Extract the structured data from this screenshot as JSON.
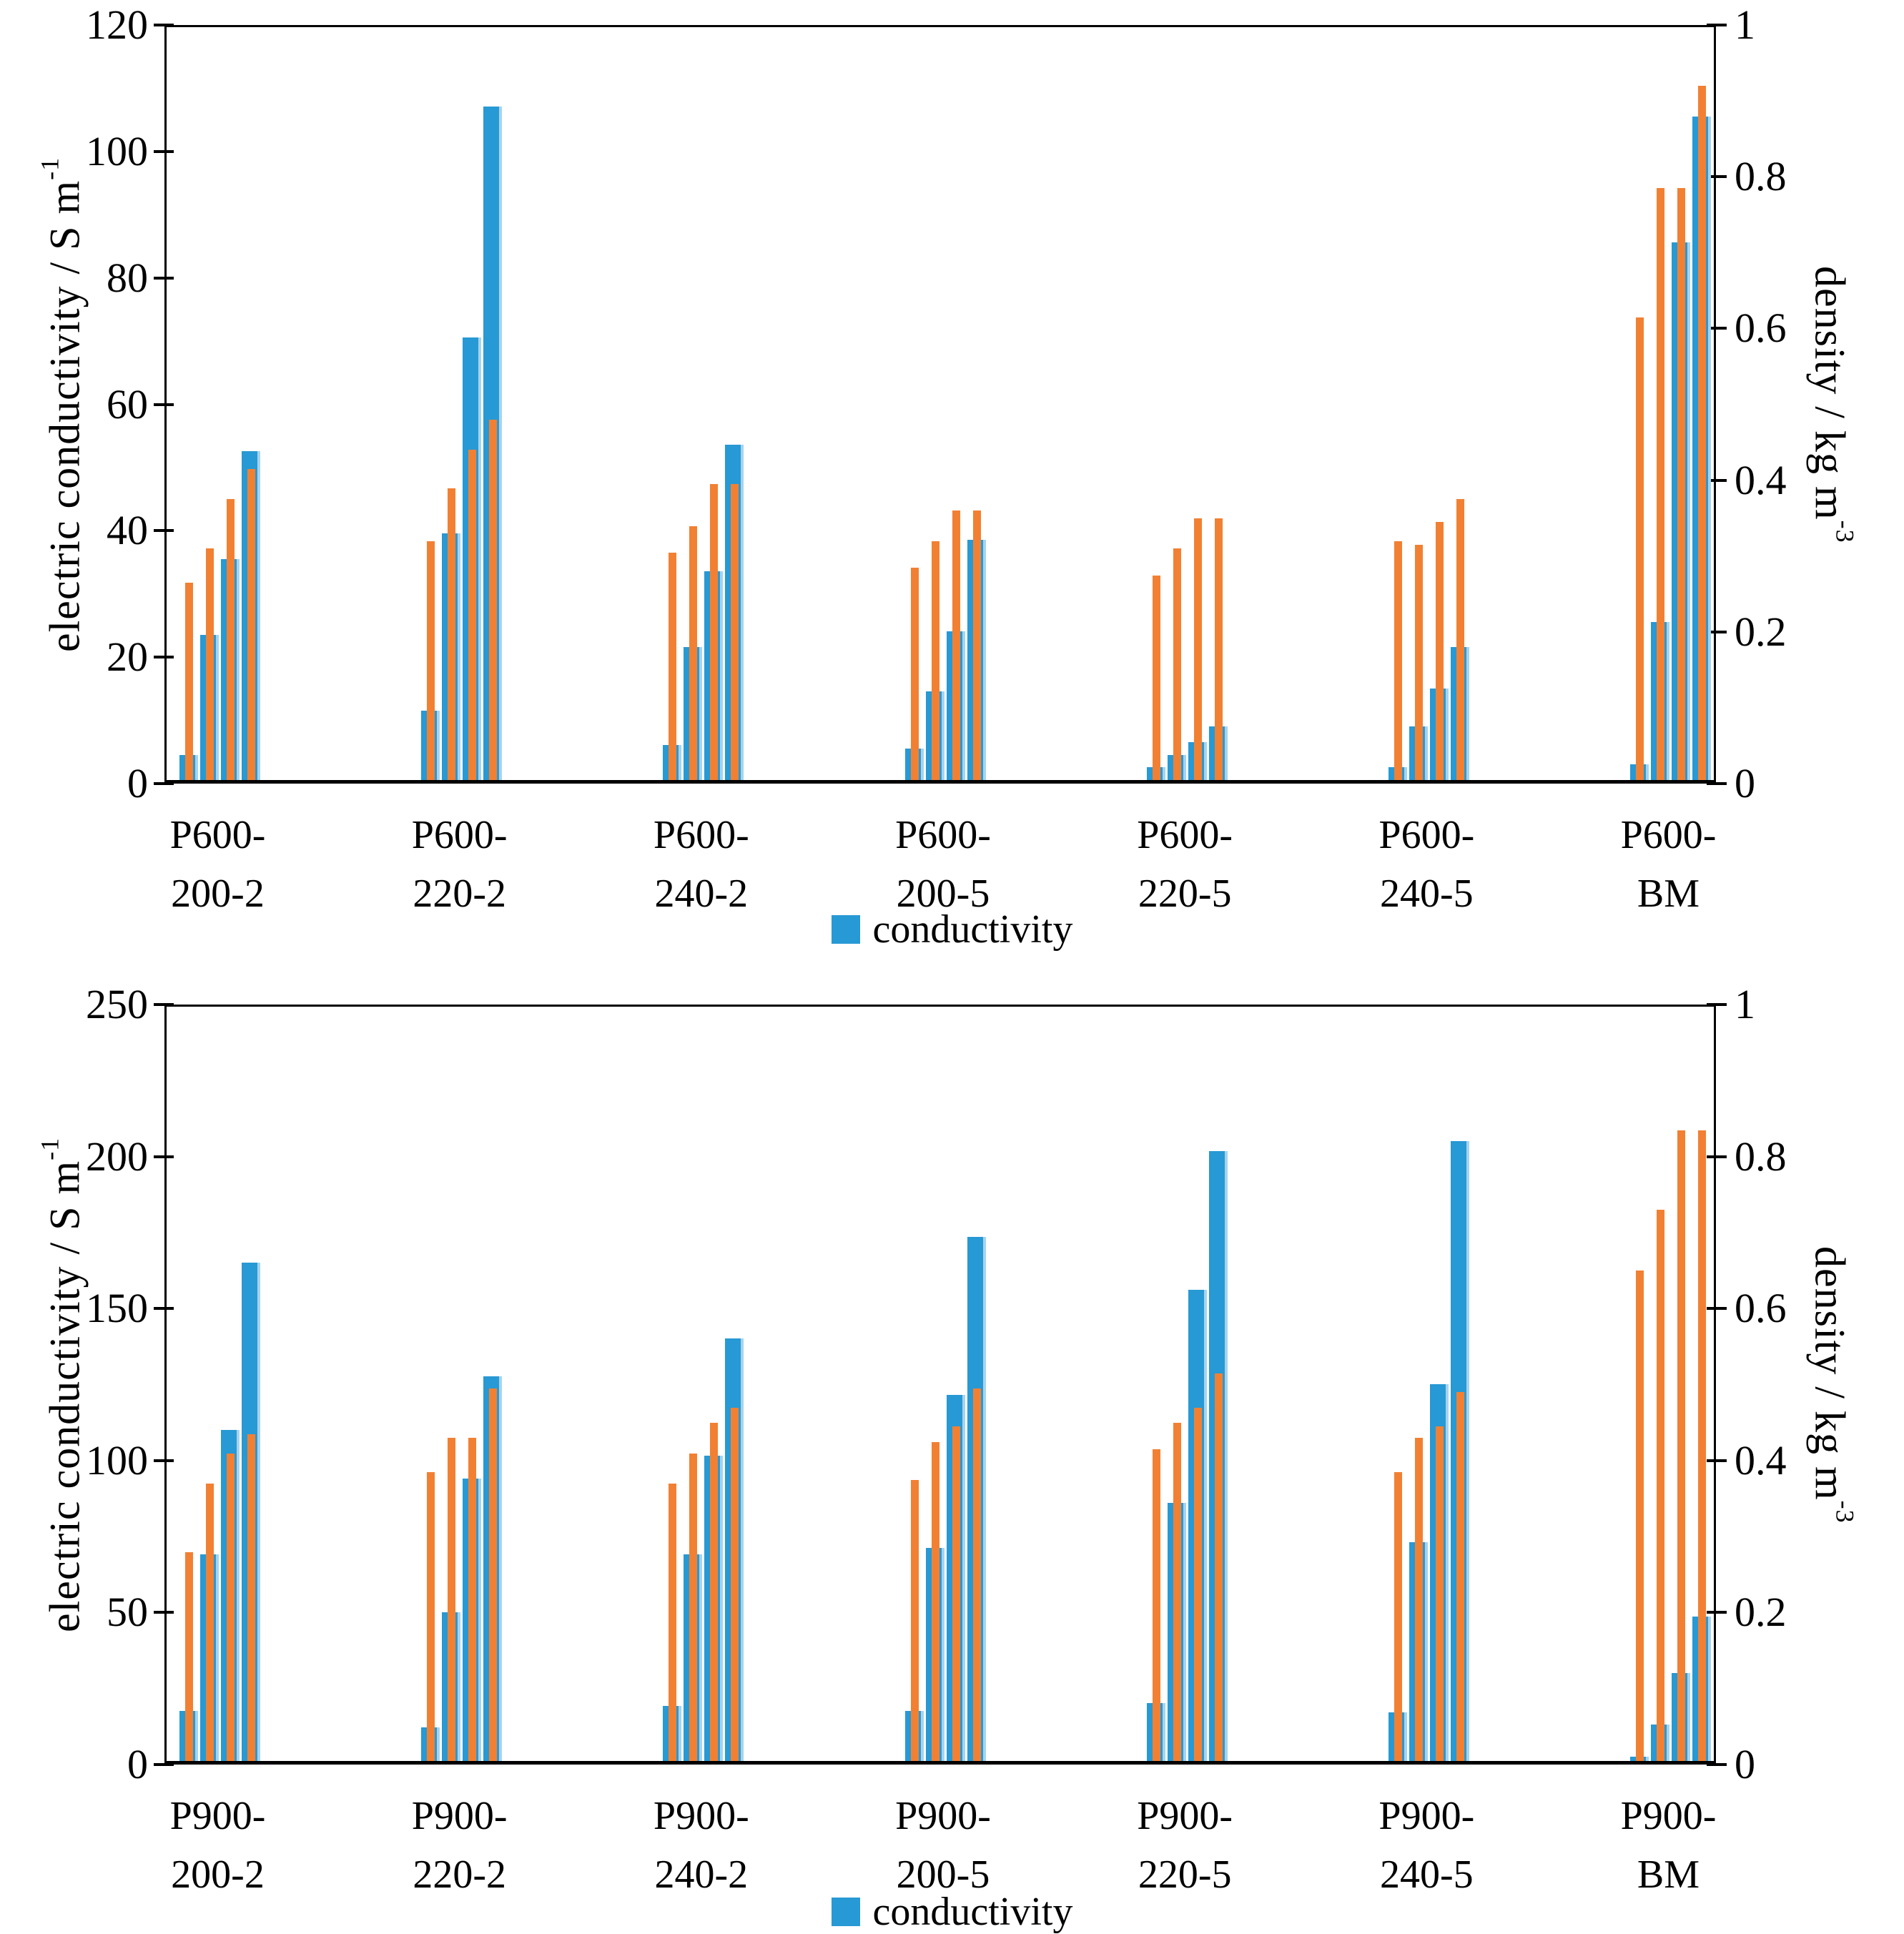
{
  "colors": {
    "conductivity": "#2799D4",
    "conductivity_edge": "#A6D3EE",
    "density": "#F28033",
    "axis": "#000000"
  },
  "chart_data": [
    {
      "type": "bar",
      "title": "",
      "left_axis": {
        "label": "electric conductivity / S m",
        "label_sup": "-1",
        "min": 0,
        "max": 120,
        "ticks": [
          "0",
          "20",
          "40",
          "60",
          "80",
          "100",
          "120"
        ]
      },
      "right_axis": {
        "label": "density / kg m",
        "label_sup": "-3",
        "min": 0,
        "max": 1,
        "ticks": [
          "0",
          "0.2",
          "0.4",
          "0.6",
          "0.8",
          "1"
        ]
      },
      "legend": {
        "label": "conductivity"
      },
      "categories": [
        {
          "line1": "P600-",
          "line2": "200-2"
        },
        {
          "line1": "P600-",
          "line2": "220-2"
        },
        {
          "line1": "P600-",
          "line2": "240-2"
        },
        {
          "line1": "P600-",
          "line2": "200-5"
        },
        {
          "line1": "P600-",
          "line2": "220-5"
        },
        {
          "line1": "P600-",
          "line2": "240-5"
        },
        {
          "line1": "P600-",
          "line2": "BM"
        }
      ],
      "series": [
        {
          "name": "conductivity",
          "axis": "left",
          "values": [
            [
              4,
              23,
              35,
              52
            ],
            [
              11,
              39,
              70,
              106.5
            ],
            [
              5.5,
              21,
              33,
              53
            ],
            [
              5,
              14,
              23.5,
              38
            ],
            [
              2,
              4,
              6,
              8.5
            ],
            [
              2,
              8.5,
              14.5,
              21
            ],
            [
              2.5,
              25,
              85,
              105
            ]
          ]
        },
        {
          "name": "density",
          "axis": "right",
          "values": [
            [
              0.26,
              0.305,
              0.37,
              0.41
            ],
            [
              0.315,
              0.385,
              0.435,
              0.475
            ],
            [
              0.3,
              0.335,
              0.39,
              0.39
            ],
            [
              0.28,
              0.315,
              0.355,
              0.355
            ],
            [
              0.27,
              0.305,
              0.345,
              0.345
            ],
            [
              0.315,
              0.31,
              0.34,
              0.37
            ],
            [
              0.61,
              0.78,
              0.78,
              0.915
            ]
          ]
        }
      ]
    },
    {
      "type": "bar",
      "title": "",
      "left_axis": {
        "label": "electric conductivity / S m",
        "label_sup": "-1",
        "min": 0,
        "max": 250,
        "ticks": [
          "0",
          "50",
          "100",
          "150",
          "200",
          "250"
        ]
      },
      "right_axis": {
        "label": "density / kg m",
        "label_sup": "-3",
        "min": 0,
        "max": 1,
        "ticks": [
          "0",
          "0.2",
          "0.4",
          "0.6",
          "0.8",
          "1"
        ]
      },
      "legend": {
        "label": "conductivity"
      },
      "categories": [
        {
          "line1": "P900-",
          "line2": "200-2"
        },
        {
          "line1": "P900-",
          "line2": "220-2"
        },
        {
          "line1": "P900-",
          "line2": "240-2"
        },
        {
          "line1": "P900-",
          "line2": "200-5"
        },
        {
          "line1": "P900-",
          "line2": "220-5"
        },
        {
          "line1": "P900-",
          "line2": "240-5"
        },
        {
          "line1": "P900-",
          "line2": "BM"
        }
      ],
      "series": [
        {
          "name": "conductivity",
          "axis": "left",
          "values": [
            [
              16.5,
              68,
              109,
              164
            ],
            [
              11,
              49,
              93,
              126.5
            ],
            [
              18,
              68,
              100.5,
              139
            ],
            [
              16.5,
              70,
              120.5,
              172.5
            ],
            [
              19,
              85,
              155,
              200.5
            ],
            [
              16,
              72,
              124,
              204
            ],
            [
              1.5,
              12,
              29,
              47.5
            ]
          ]
        },
        {
          "name": "density",
          "axis": "right",
          "values": [
            [
              0.275,
              0.365,
              0.405,
              0.43
            ],
            [
              0.38,
              0.425,
              0.425,
              0.49
            ],
            [
              0.365,
              0.405,
              0.445,
              0.465
            ],
            [
              0.37,
              0.42,
              0.44,
              0.49
            ],
            [
              0.41,
              0.445,
              0.465,
              0.51
            ],
            [
              0.38,
              0.425,
              0.44,
              0.485
            ],
            [
              0.645,
              0.725,
              0.83,
              0.83
            ]
          ]
        }
      ]
    }
  ]
}
